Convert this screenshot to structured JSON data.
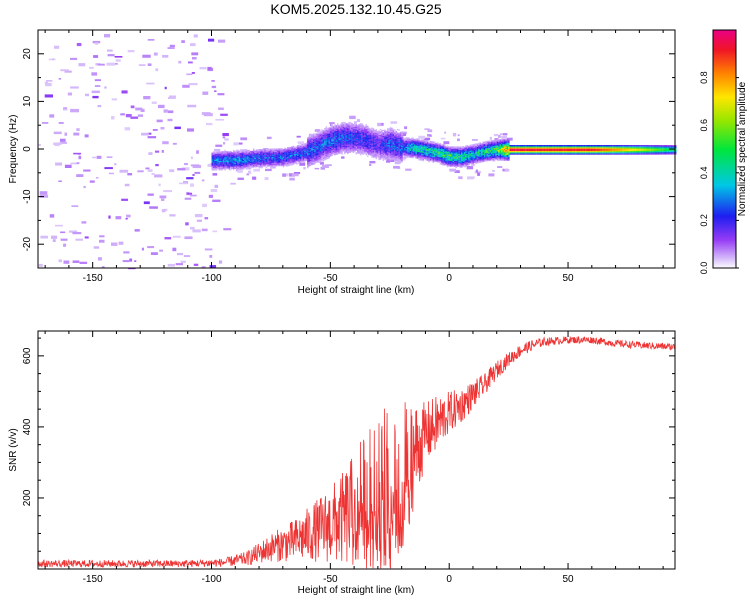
{
  "figure": {
    "title": "KOM5.2025.132.10.45.G25"
  },
  "chart_data": [
    {
      "type": "heatmap",
      "title": "",
      "xlabel": "Height of straight line (km)",
      "ylabel": "Frequency (Hz)",
      "xlim": [
        -173,
        95
      ],
      "ylim": [
        -25,
        25
      ],
      "xticks": [
        -150,
        -100,
        -50,
        0,
        50
      ],
      "yticks": [
        -20,
        -10,
        0,
        10,
        20
      ],
      "colorbar": {
        "label": "Normalized spectral amplitude",
        "range": [
          0,
          1
        ],
        "ticks": [
          "0.0",
          "0.2",
          "0.4",
          "0.6",
          "0.8"
        ],
        "tick_values": [
          0,
          0.2,
          0.4,
          0.6,
          0.8
        ],
        "colormap": "rainbow-white-purple-to-red"
      },
      "ridge": {
        "description_values": "doppler ridge center frequency vs height",
        "x": [
          -100,
          -90,
          -80,
          -70,
          -60,
          -50,
          -45,
          -40,
          -35,
          -30,
          -25,
          -20,
          -15,
          -10,
          -5,
          0,
          5,
          10,
          15,
          20,
          25,
          40,
          60,
          80,
          95
        ],
        "y": [
          -2.3,
          -2.2,
          -1.8,
          -1.6,
          -0.5,
          1.8,
          2.5,
          2.5,
          2.0,
          1.0,
          1.2,
          0.5,
          0.3,
          -0.2,
          -0.6,
          -1.5,
          -1.5,
          -1.0,
          -0.4,
          0.0,
          0.0,
          0.0,
          0.0,
          0.0,
          0.0
        ],
        "amplitude": [
          0.3,
          0.35,
          0.3,
          0.3,
          0.3,
          0.3,
          0.3,
          0.25,
          0.25,
          0.2,
          0.3,
          0.3,
          0.45,
          0.5,
          0.5,
          0.55,
          0.5,
          0.45,
          0.5,
          0.6,
          0.99,
          0.95,
          0.95,
          0.7,
          0.45
        ]
      },
      "noise_region": {
        "x_range": [
          -173,
          -100
        ],
        "amplitude": 0.05
      }
    },
    {
      "type": "line",
      "title": "",
      "xlabel": "Height of straight line (km)",
      "ylabel": "SNR (v/v)",
      "xlim": [
        -173,
        95
      ],
      "ylim": [
        0,
        670
      ],
      "xticks": [
        -150,
        -100,
        -50,
        0,
        50
      ],
      "yticks": [
        200,
        400,
        600
      ],
      "color": "#ee3333",
      "envelope": {
        "x": [
          -173,
          -110,
          -95,
          -85,
          -75,
          -65,
          -55,
          -45,
          -38,
          -30,
          -25,
          -20,
          -15,
          -10,
          -5,
          0,
          5,
          10,
          15,
          20,
          25,
          30,
          35,
          40,
          50,
          60,
          70,
          80,
          95
        ],
        "mean": [
          15,
          15,
          18,
          30,
          60,
          80,
          110,
          140,
          170,
          210,
          230,
          250,
          320,
          380,
          410,
          440,
          460,
          490,
          520,
          560,
          590,
          615,
          630,
          640,
          645,
          645,
          635,
          630,
          625
        ],
        "spread": [
          10,
          10,
          12,
          20,
          40,
          60,
          90,
          130,
          180,
          230,
          250,
          230,
          150,
          90,
          80,
          60,
          50,
          40,
          30,
          25,
          20,
          18,
          15,
          12,
          10,
          10,
          10,
          10,
          10
        ]
      }
    }
  ]
}
